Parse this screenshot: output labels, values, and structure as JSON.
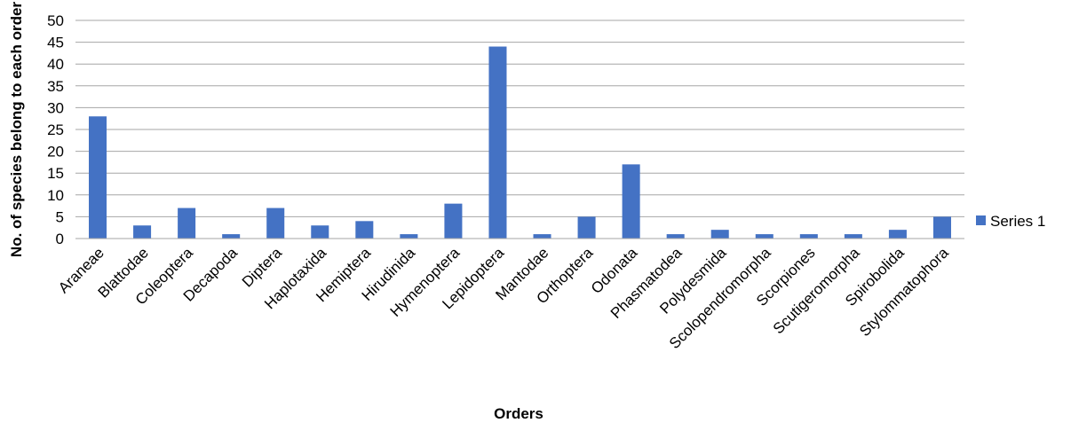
{
  "chart_data": {
    "type": "bar",
    "title": "",
    "xlabel": "Orders",
    "ylabel": "No. of species belong to each order",
    "ylim": [
      0,
      50
    ],
    "ytick_step": 5,
    "grid": true,
    "legend_position": "right",
    "categories": [
      "Araneae",
      "Blattodae",
      "Coleoptera",
      "Decapoda",
      "Diptera",
      "Haplotaxida",
      "Hemiptera",
      "Hirudinida",
      "Hymenoptera",
      "Lepidoptera",
      "Mantodae",
      "Orthoptera",
      "Odonata",
      "Phasmatodea",
      "Polydesmida",
      "Scolopendromorpha",
      "Scorpiones",
      "Scutigeromorpha",
      "Spirobolida",
      "Stylommatophora"
    ],
    "series": [
      {
        "name": "Series 1",
        "color": "#4472C4",
        "values": [
          28,
          3,
          7,
          1,
          7,
          3,
          4,
          1,
          8,
          44,
          1,
          5,
          17,
          1,
          2,
          1,
          1,
          1,
          2,
          5
        ]
      }
    ]
  }
}
